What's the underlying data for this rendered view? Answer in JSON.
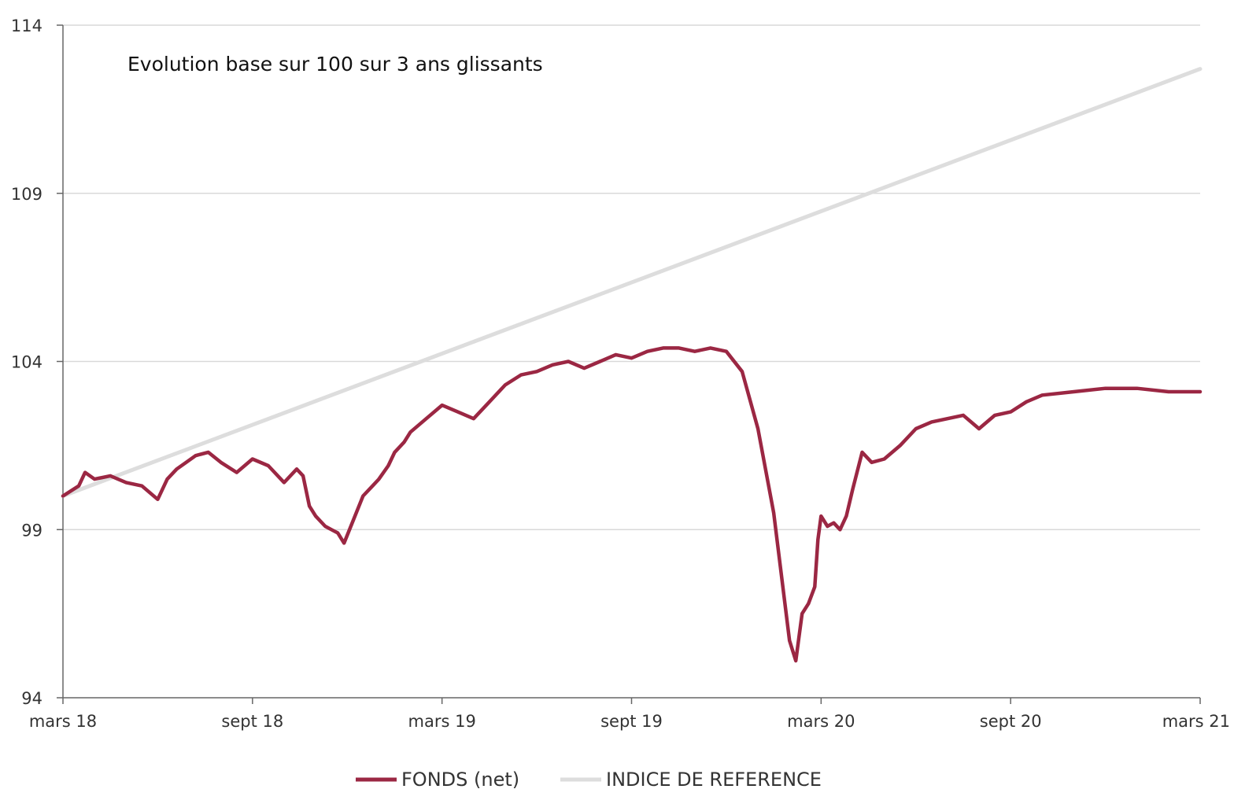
{
  "chart_data": {
    "type": "line",
    "title": "Evolution base sur 100 sur 3 ans glissants",
    "xlabel": "",
    "ylabel": "",
    "x_tick_labels": [
      "mars 18",
      "sept 18",
      "mars 19",
      "sept 19",
      "mars 20",
      "sept 20",
      "mars 21"
    ],
    "x_range_months": [
      0,
      36
    ],
    "yticks": [
      94,
      99,
      104,
      109,
      114
    ],
    "ylim": [
      94,
      114
    ],
    "grid": "horizontal",
    "legend_position": "bottom",
    "series": [
      {
        "name": "FONDS (net)",
        "color": "#9b2743",
        "x_months": [
          0,
          0.5,
          0.7,
          1.0,
          1.5,
          2.0,
          2.5,
          3.0,
          3.3,
          3.6,
          3.9,
          4.2,
          4.6,
          5.0,
          5.5,
          6.0,
          6.5,
          7.0,
          7.4,
          7.6,
          7.8,
          8.0,
          8.3,
          8.5,
          8.7,
          8.9,
          9.2,
          9.5,
          9.8,
          10.0,
          10.3,
          10.5,
          10.8,
          11.0,
          11.5,
          12.0,
          12.5,
          13.0,
          13.5,
          14.0,
          14.5,
          15.0,
          15.5,
          16.0,
          16.5,
          17.0,
          17.5,
          18.0,
          18.5,
          19.0,
          19.5,
          20.0,
          20.5,
          21.0,
          21.5,
          22.0,
          22.5,
          23.0,
          23.2,
          23.4,
          23.6,
          23.8,
          23.9,
          24.0,
          24.2,
          24.4,
          24.6,
          24.8,
          25.0,
          25.3,
          25.6,
          26.0,
          26.5,
          27.0,
          27.5,
          28.0,
          28.5,
          29.0,
          29.5,
          30.0,
          30.5,
          31.0,
          32.0,
          33.0,
          34.0,
          35.0,
          36.0
        ],
        "values": [
          100.0,
          100.3,
          100.7,
          100.5,
          100.6,
          100.4,
          100.3,
          99.9,
          100.5,
          100.8,
          101.0,
          101.2,
          101.3,
          101.0,
          100.7,
          101.1,
          100.9,
          100.4,
          100.8,
          100.6,
          99.7,
          99.4,
          99.1,
          99.0,
          98.9,
          98.6,
          99.3,
          100.0,
          100.3,
          100.5,
          100.9,
          101.3,
          101.6,
          101.9,
          102.3,
          102.7,
          102.5,
          102.3,
          102.8,
          103.3,
          103.6,
          103.7,
          103.9,
          104.0,
          103.8,
          104.0,
          104.2,
          104.1,
          104.3,
          104.4,
          104.4,
          104.3,
          104.4,
          104.3,
          103.7,
          102.0,
          99.5,
          95.7,
          95.1,
          96.5,
          96.8,
          97.3,
          98.7,
          99.4,
          99.1,
          99.2,
          99.0,
          99.4,
          100.2,
          101.3,
          101.0,
          101.1,
          101.5,
          102.0,
          102.2,
          102.3,
          102.4,
          102.0,
          102.4,
          102.5,
          102.8,
          103.0,
          103.1,
          103.2,
          103.2,
          103.1,
          103.1
        ],
        "line_width": 4.5
      },
      {
        "name": "INDICE DE REFERENCE",
        "color": "#dddddd",
        "x_months": [
          0,
          36
        ],
        "values": [
          100.0,
          112.7
        ],
        "line_width": 5
      }
    ]
  }
}
